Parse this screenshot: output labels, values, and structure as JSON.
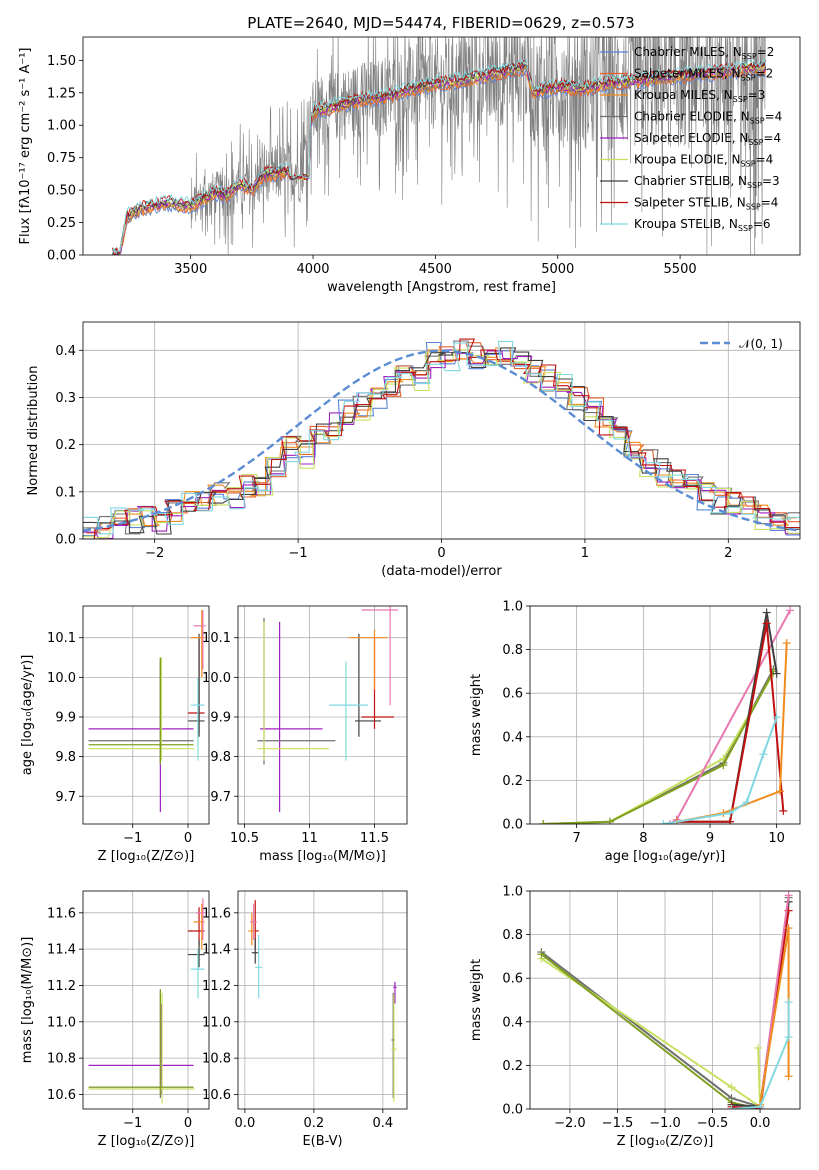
{
  "figure": {
    "title": "PLATE=2640, MJD=54474, FIBERID=0629, z=0.573"
  },
  "colors": {
    "Chabrier MILES": "#5b84d6",
    "Salpeter MILES": "#e8602c",
    "Kroupa MILES": "#f08c1e",
    "Chabrier ELODIE": "#707070",
    "Salpeter ELODIE": "#a020c0",
    "Kroupa ELODIE": "#c8e060",
    "Chabrier STELIB": "#404040",
    "Salpeter STELIB": "#c01010",
    "Kroupa STELIB": "#80d8e0",
    "pink": "#e878b0",
    "olive": "#80a020",
    "normal": "#5b8dd6"
  },
  "legend_spectrum": [
    {
      "label": "Chabrier MILES, N",
      "sub": "SSP",
      "suffix": "=2",
      "color_key": "Chabrier MILES"
    },
    {
      "label": "Salpeter MILES, N",
      "sub": "SSP",
      "suffix": "=2",
      "color_key": "Salpeter MILES"
    },
    {
      "label": "Kroupa MILES, N",
      "sub": "SSP",
      "suffix": "=3",
      "color_key": "Kroupa MILES"
    },
    {
      "label": "Chabrier ELODIE, N",
      "sub": "SSP",
      "suffix": "=4",
      "color_key": "Chabrier ELODIE"
    },
    {
      "label": "Salpeter ELODIE, N",
      "sub": "SSP",
      "suffix": "=4",
      "color_key": "Salpeter ELODIE"
    },
    {
      "label": "Kroupa ELODIE, N",
      "sub": "SSP",
      "suffix": "=4",
      "color_key": "Kroupa ELODIE"
    },
    {
      "label": "Chabrier STELIB, N",
      "sub": "SSP",
      "suffix": "=3",
      "color_key": "Chabrier STELIB"
    },
    {
      "label": "Salpeter STELIB, N",
      "sub": "SSP",
      "suffix": "=4",
      "color_key": "Salpeter STELIB"
    },
    {
      "label": "Kroupa STELIB, N",
      "sub": "SSP",
      "suffix": "=6",
      "color_key": "Kroupa STELIB"
    }
  ],
  "legend_normal": {
    "label": "𝒩(0, 1)"
  },
  "chart_data": [
    {
      "id": "spectrum",
      "type": "line",
      "title": "PLATE=2640, MJD=54474, FIBERID=0629, z=0.573",
      "xlabel": "wavelength [Angstrom, rest frame]",
      "ylabel": "Flux [fλ10⁻¹⁷ erg cm⁻² s⁻¹ A⁻¹]",
      "xlim": [
        3060,
        5990
      ],
      "ylim": [
        0.0,
        1.68
      ],
      "xticks": [
        3500,
        4000,
        4500,
        5000,
        5500
      ],
      "yticks": [
        0.0,
        0.25,
        0.5,
        0.75,
        1.0,
        1.25,
        1.5
      ],
      "ytick_labels": [
        "0.00",
        "0.25",
        "0.50",
        "0.75",
        "1.00",
        "1.25",
        "1.50"
      ],
      "model_continuum": {
        "x": [
          3180,
          3210,
          3240,
          3300,
          3400,
          3500,
          3600,
          3650,
          3700,
          3750,
          3800,
          3850,
          3900,
          3950,
          4000,
          4100,
          4200,
          4300,
          4400,
          4500,
          4600,
          4700,
          4800,
          4870,
          4900,
          5000,
          5100,
          5200,
          5300,
          5400,
          5500,
          5600,
          5700,
          5800
        ],
        "y": [
          0.0,
          0.0,
          0.3,
          0.36,
          0.4,
          0.38,
          0.48,
          0.46,
          0.55,
          0.5,
          0.62,
          0.63,
          0.65,
          0.64,
          1.1,
          1.15,
          1.2,
          1.22,
          1.28,
          1.32,
          1.34,
          1.38,
          1.42,
          1.45,
          1.25,
          1.3,
          1.28,
          1.32,
          1.34,
          1.36,
          1.38,
          1.4,
          1.42,
          1.44
        ]
      },
      "observed_noise_start": 3500
    },
    {
      "id": "residual-hist",
      "type": "histogram",
      "xlabel": "(data-model)/error",
      "ylabel": "Normed distribution",
      "xlim": [
        -2.5,
        2.5
      ],
      "ylim": [
        0.0,
        0.46
      ],
      "xticks": [
        -2,
        -1,
        0,
        1,
        2
      ],
      "yticks": [
        0.0,
        0.1,
        0.2,
        0.3,
        0.4
      ],
      "normal_curve": {
        "mean": 0,
        "sigma": 1,
        "label": "𝒩(0, 1)"
      },
      "bins_approx": [
        0.02,
        0.03,
        0.04,
        0.04,
        0.05,
        0.04,
        0.06,
        0.08,
        0.07,
        0.09,
        0.08,
        0.11,
        0.12,
        0.15,
        0.19,
        0.18,
        0.22,
        0.24,
        0.27,
        0.28,
        0.3,
        0.33,
        0.35,
        0.34,
        0.39,
        0.38,
        0.4,
        0.39,
        0.38,
        0.39,
        0.37,
        0.36,
        0.34,
        0.32,
        0.3,
        0.27,
        0.24,
        0.21,
        0.19,
        0.16,
        0.14,
        0.12,
        0.11,
        0.09,
        0.08,
        0.07,
        0.06,
        0.05,
        0.04,
        0.03
      ]
    },
    {
      "id": "age-vs-Z",
      "type": "errorbar",
      "xlabel": "Z [log₁₀(Z/Z⊙)]",
      "ylabel": "age  [log₁₀(age/yr)]",
      "xlim": [
        -1.9,
        0.38
      ],
      "ylim": [
        9.63,
        10.18
      ],
      "xticks": [
        -1,
        0
      ],
      "yticks": [
        9.7,
        9.8,
        9.9,
        10.0,
        10.1
      ]
    },
    {
      "id": "age-vs-mass",
      "type": "errorbar",
      "xlabel": "mass [log₁₀(M/M⊙)]",
      "ylabel": "",
      "xlim": [
        10.45,
        11.75
      ],
      "ylim": [
        9.63,
        10.18
      ],
      "xticks": [
        10.5,
        11.0,
        11.5
      ],
      "yticks": [
        9.7,
        9.8,
        9.9,
        10.0,
        10.1
      ]
    },
    {
      "id": "massweight-vs-age",
      "type": "line",
      "xlabel": "age  [log₁₀(age/yr)]",
      "ylabel": "mass weight",
      "xlim": [
        6.3,
        10.35
      ],
      "ylim": [
        0.0,
        1.0
      ],
      "xticks": [
        7,
        8,
        9,
        10
      ],
      "yticks": [
        0.0,
        0.2,
        0.4,
        0.6,
        0.8,
        1.0
      ]
    },
    {
      "id": "mass-vs-Z",
      "type": "errorbar",
      "xlabel": "Z [log₁₀(Z/Z⊙)]",
      "ylabel": "mass [log₁₀(M/M⊙)]",
      "xlim": [
        -1.9,
        0.38
      ],
      "ylim": [
        10.52,
        11.72
      ],
      "xticks": [
        -1,
        0
      ],
      "yticks": [
        10.6,
        10.8,
        11.0,
        11.2,
        11.4,
        11.6
      ]
    },
    {
      "id": "mass-vs-EBV",
      "type": "errorbar",
      "xlabel": "E(B-V)",
      "ylabel": "",
      "xlim": [
        -0.02,
        0.47
      ],
      "ylim": [
        10.52,
        11.72
      ],
      "xticks": [
        0.0,
        0.2,
        0.4
      ],
      "xtick_labels": [
        "0.0",
        "0.2",
        "0.4"
      ],
      "yticks": [
        10.6,
        10.8,
        11.0,
        11.2,
        11.4,
        11.6
      ]
    },
    {
      "id": "massweight-vs-Z",
      "type": "line",
      "xlabel": "Z [log₁₀(Z/Z⊙)]",
      "ylabel": "mass weight",
      "xlim": [
        -2.42,
        0.42
      ],
      "ylim": [
        0.0,
        1.0
      ],
      "xticks": [
        -2.0,
        -1.5,
        -1.0,
        -0.5,
        0.0
      ],
      "xtick_labels": [
        "−2.0",
        "−1.5",
        "−1.0",
        "−0.5",
        "0.0"
      ],
      "yticks": [
        0.0,
        0.2,
        0.4,
        0.6,
        0.8,
        1.0
      ]
    }
  ]
}
